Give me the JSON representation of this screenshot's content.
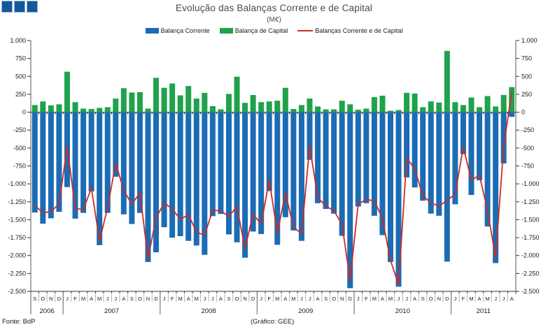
{
  "title": "Evolução das Balanças Corrente e de Capital",
  "subtitle": "(M€)",
  "footer": {
    "left": "Fonte: BdP",
    "center": "(Gráfico: GEE)"
  },
  "logo": {
    "description": "three-blue-squares",
    "fill": "#15579B",
    "border": "#8FB4D6"
  },
  "chart_data": {
    "type": "bar+line",
    "title": "Evolução das Balanças Corrente e de Capital",
    "subtitle": "(M€)",
    "ylim": [
      -2500,
      1000
    ],
    "ytick_step": 250,
    "y_tick_labels": [
      "1.000",
      "750",
      "500",
      "250",
      "0",
      "-250",
      "-500",
      "-750",
      "-1.000",
      "-1.250",
      "-1.500",
      "-1.750",
      "-2.000",
      "-2.250",
      "-2.500"
    ],
    "grid": false,
    "legend_position": "top-center",
    "categories": [
      "S",
      "O",
      "N",
      "D",
      "J",
      "F",
      "M",
      "A",
      "M",
      "J",
      "J",
      "A",
      "S",
      "O",
      "N",
      "D",
      "J",
      "F",
      "M",
      "A",
      "M",
      "J",
      "J",
      "A",
      "S",
      "O",
      "N",
      "D",
      "J",
      "F",
      "M",
      "A",
      "M",
      "J",
      "J",
      "A",
      "S",
      "O",
      "N",
      "D",
      "J",
      "F",
      "M",
      "A",
      "M",
      "J",
      "J",
      "A",
      "S",
      "O",
      "N",
      "D",
      "J",
      "F",
      "M",
      "A",
      "M",
      "J",
      "J",
      "A"
    ],
    "year_groups": [
      {
        "year": "2006",
        "months": 4
      },
      {
        "year": "2007",
        "months": 12
      },
      {
        "year": "2008",
        "months": 12
      },
      {
        "year": "2009",
        "months": 12
      },
      {
        "year": "2010",
        "months": 12
      },
      {
        "year": "2011",
        "months": 8
      }
    ],
    "series": [
      {
        "name": "Balança Corrente",
        "type": "bar",
        "color": "#1B6CB4",
        "values": [
          -1400,
          -1555,
          -1480,
          -1390,
          -1045,
          -1485,
          -1405,
          -1105,
          -1855,
          -1405,
          -900,
          -1425,
          -1560,
          -1405,
          -2090,
          -1955,
          -1605,
          -1750,
          -1730,
          -1795,
          -1860,
          -1990,
          -1450,
          -1420,
          -1705,
          -1815,
          -2030,
          -1665,
          -1700,
          -1100,
          -1850,
          -1465,
          -1650,
          -1795,
          -665,
          -1270,
          -1350,
          -1415,
          -1725,
          -2455,
          -1315,
          -1270,
          -1445,
          -1715,
          -2090,
          -2435,
          -910,
          -1050,
          -1235,
          -1415,
          -1445,
          -2085,
          -1285,
          -585,
          -1155,
          -950,
          -1595,
          -2105,
          -715,
          -65
        ]
      },
      {
        "name": "Balança de Capital",
        "type": "bar",
        "color": "#1FA24B",
        "values": [
          100,
          150,
          95,
          110,
          565,
          140,
          50,
          45,
          60,
          70,
          190,
          335,
          275,
          280,
          50,
          480,
          340,
          400,
          235,
          365,
          190,
          270,
          85,
          40,
          255,
          495,
          130,
          240,
          140,
          150,
          160,
          340,
          45,
          100,
          190,
          80,
          40,
          40,
          160,
          110,
          35,
          50,
          210,
          230,
          20,
          30,
          270,
          260,
          70,
          150,
          135,
          855,
          140,
          100,
          205,
          70,
          225,
          80,
          240,
          350
        ]
      },
      {
        "name": "Balanças Corrente e de Capital",
        "type": "line",
        "color": "#CE2A26",
        "values": [
          -1300,
          -1405,
          -1385,
          -1280,
          -480,
          -1345,
          -1355,
          -1060,
          -1795,
          -1335,
          -710,
          -1090,
          -1285,
          -1125,
          -2040,
          -1475,
          -1265,
          -1350,
          -1495,
          -1430,
          -1670,
          -1720,
          -1365,
          -1380,
          -1450,
          -1320,
          -1900,
          -1425,
          -1560,
          -950,
          -1690,
          -1125,
          -1605,
          -1695,
          -475,
          -1190,
          -1310,
          -1375,
          -1565,
          -2345,
          -1280,
          -1220,
          -1235,
          -1485,
          -2070,
          -2405,
          -640,
          -790,
          -1165,
          -1265,
          -1310,
          -1230,
          -1145,
          -485,
          -950,
          -880,
          -1370,
          -2025,
          -475,
          285
        ]
      }
    ]
  }
}
